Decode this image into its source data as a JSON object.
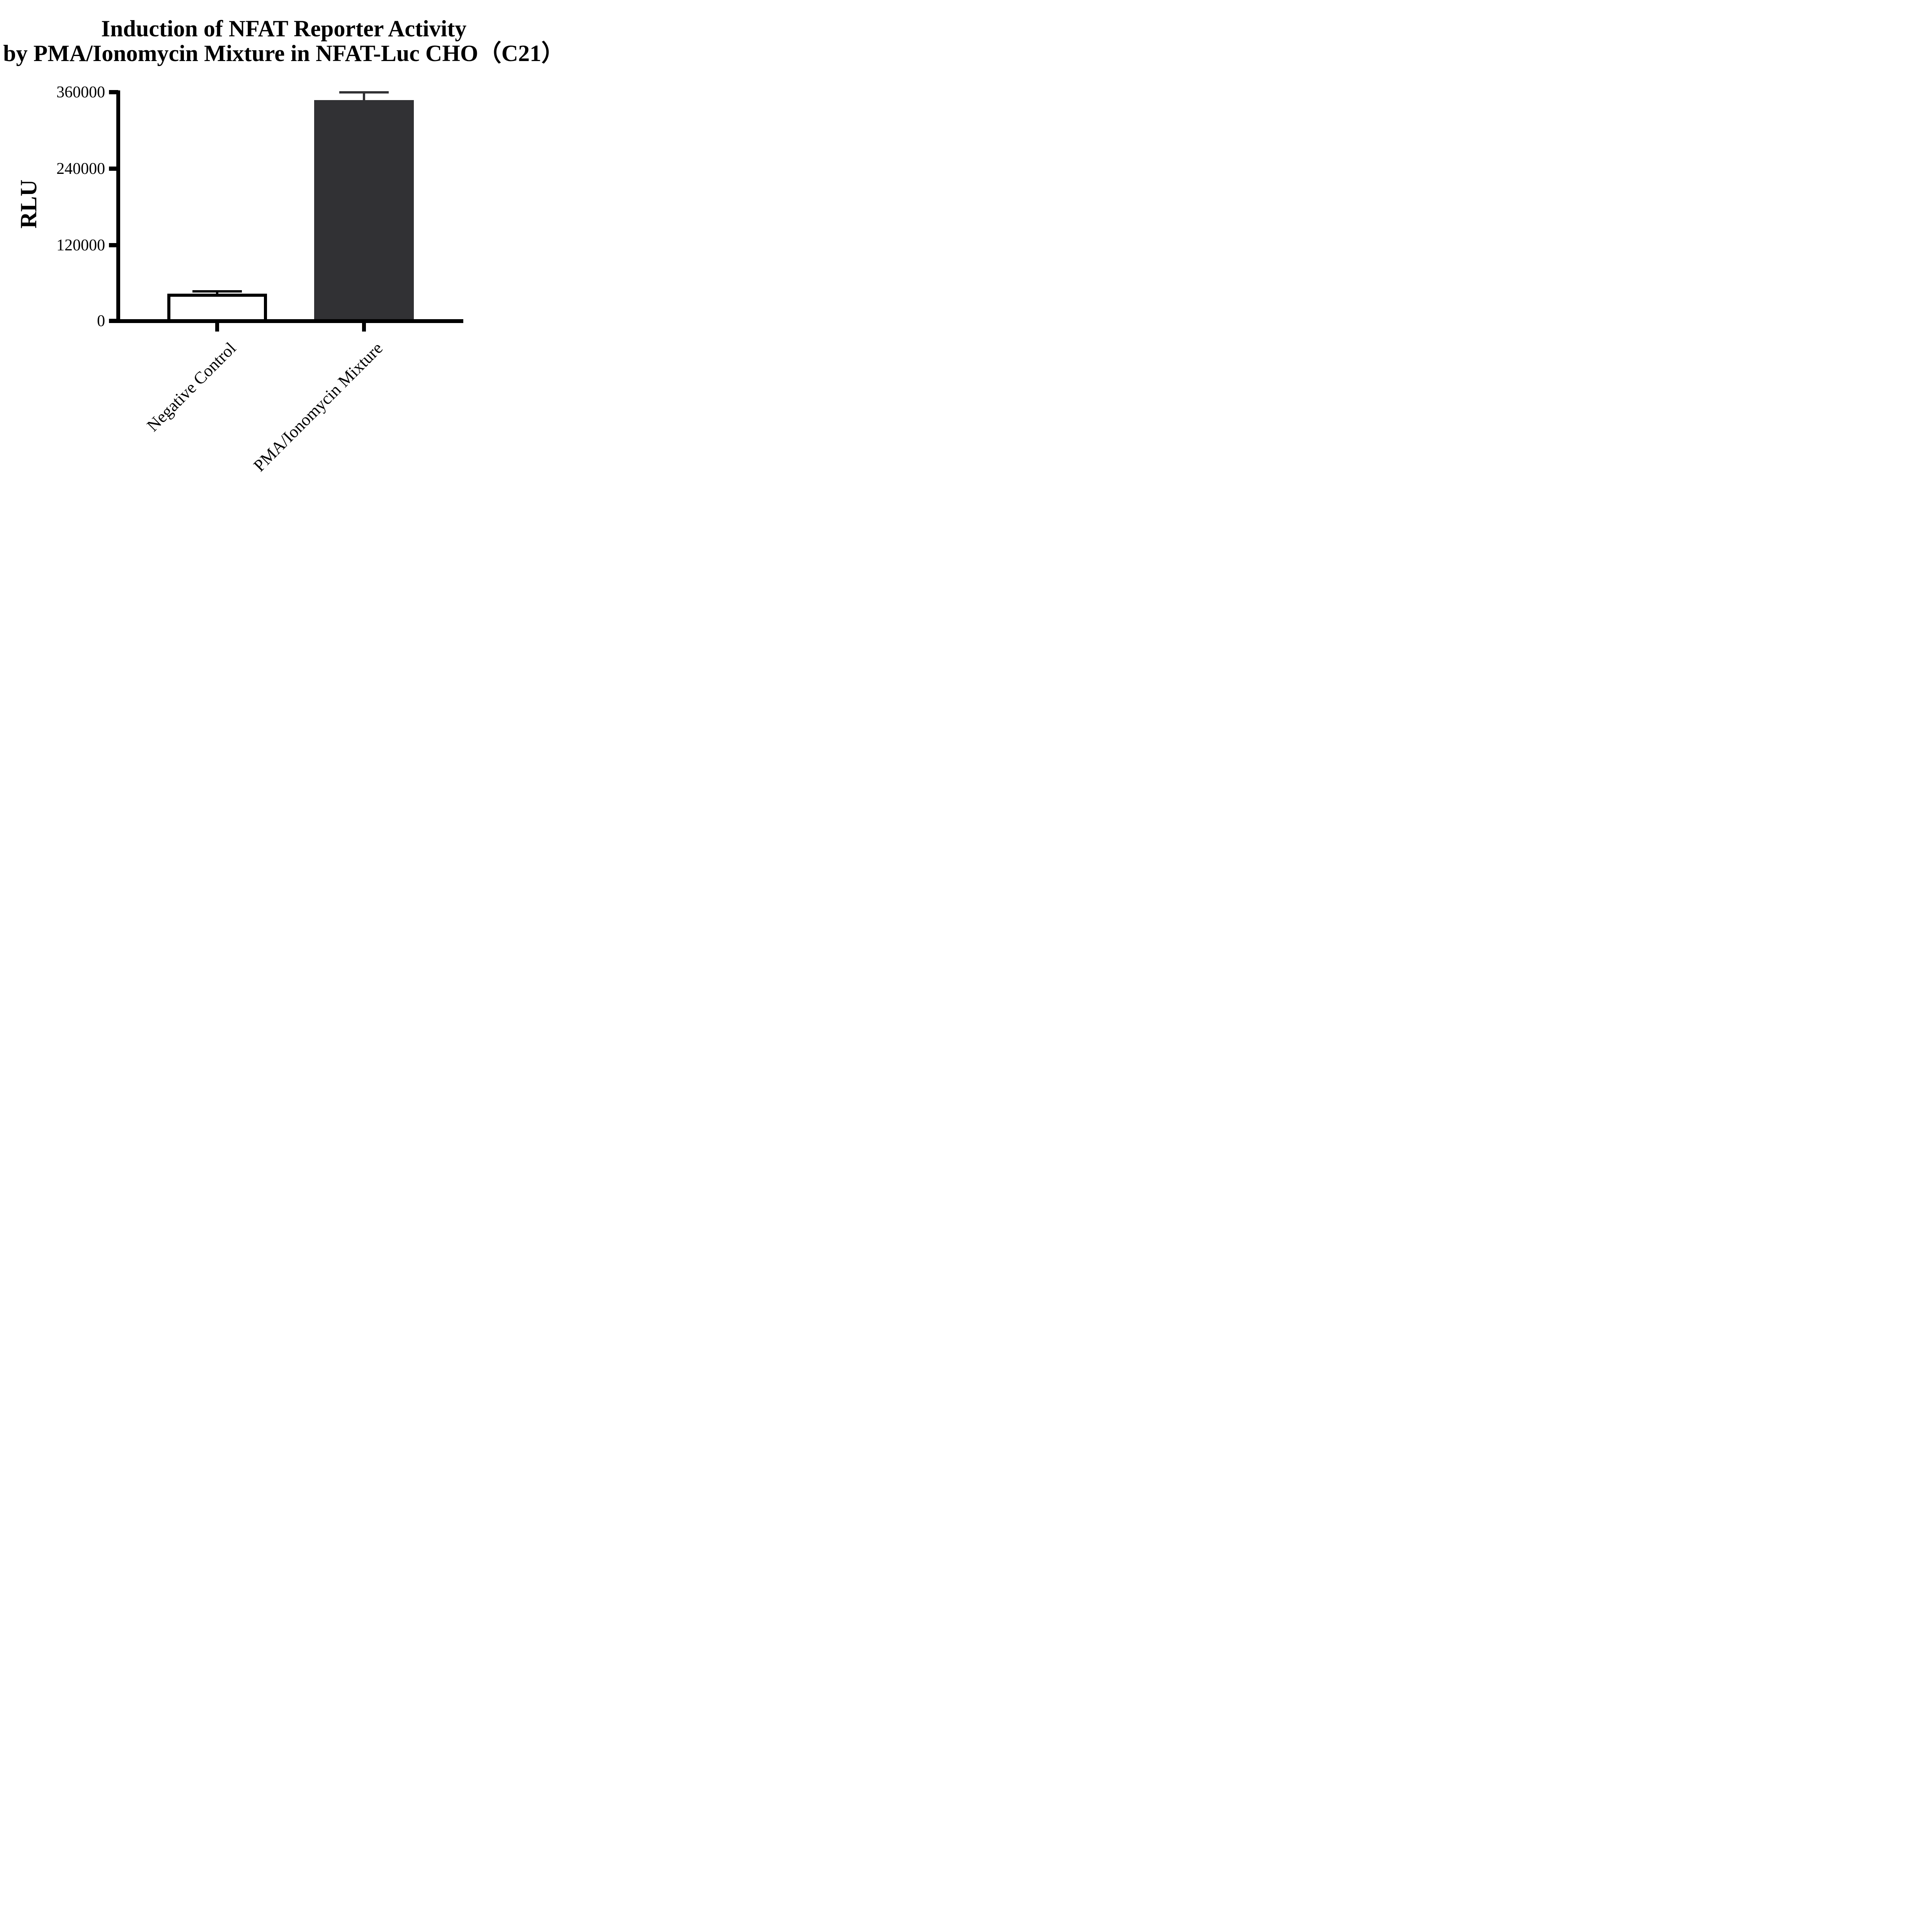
{
  "chart_data": {
    "type": "bar",
    "title": "Induction of NFAT Reporter Activity by PMA/Ionomycin Mixture in NFAT-Luc CHO（C21）",
    "title_line1": "Induction of NFAT Reporter Activity",
    "title_line2": "by PMA/Ionomycin Mixture in NFAT-Luc CHO（C21）",
    "xlabel": "",
    "ylabel": "RLU",
    "categories": [
      "Negative Control",
      "PMA/Ionomycin Mixture"
    ],
    "values": [
      43000,
      348000
    ],
    "errors": [
      4000,
      12000
    ],
    "error_type": "sd-upper-only",
    "ylim": [
      0,
      360000
    ],
    "yticks": [
      0,
      120000,
      240000,
      360000
    ],
    "ytick_labels": [
      "0",
      "120000",
      "240000",
      "360000"
    ],
    "bar_fill_colors": [
      "#ffffff",
      "#313134"
    ],
    "bar_border_colors": [
      "#000000",
      "#313134"
    ],
    "error_colors": [
      "#000000",
      "#313134"
    ],
    "axis_color": "#000000",
    "grid": false,
    "legend": "none",
    "xtick_label_rotation_deg": 45
  }
}
